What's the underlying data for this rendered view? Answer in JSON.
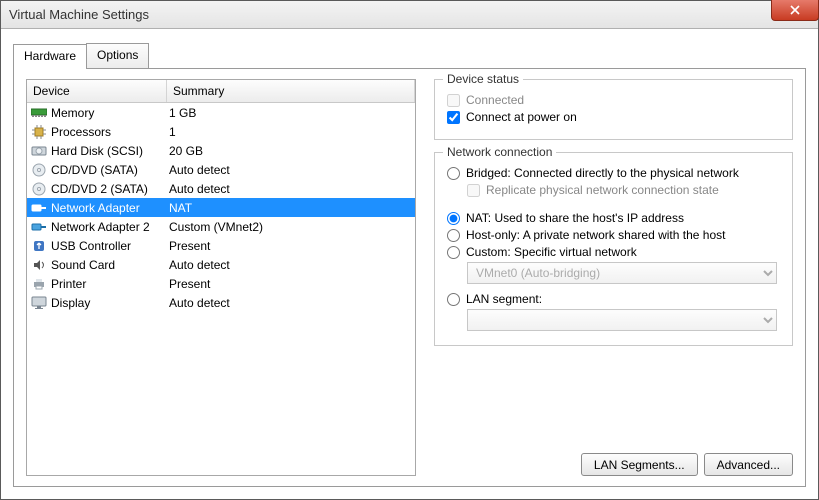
{
  "window": {
    "title": "Virtual Machine Settings"
  },
  "tabs": {
    "hardware": "Hardware",
    "options": "Options",
    "active": "hardware"
  },
  "list": {
    "col_device": "Device",
    "col_summary": "Summary",
    "selected_index": 5,
    "rows": [
      {
        "device": "Memory",
        "summary": "1 GB",
        "icon": "memory-icon"
      },
      {
        "device": "Processors",
        "summary": "1",
        "icon": "cpu-icon"
      },
      {
        "device": "Hard Disk (SCSI)",
        "summary": "20 GB",
        "icon": "disk-icon"
      },
      {
        "device": "CD/DVD (SATA)",
        "summary": "Auto detect",
        "icon": "cd-icon"
      },
      {
        "device": "CD/DVD 2 (SATA)",
        "summary": "Auto detect",
        "icon": "cd-icon"
      },
      {
        "device": "Network Adapter",
        "summary": "NAT",
        "icon": "net-icon"
      },
      {
        "device": "Network Adapter 2",
        "summary": "Custom (VMnet2)",
        "icon": "net-icon"
      },
      {
        "device": "USB Controller",
        "summary": "Present",
        "icon": "usb-icon"
      },
      {
        "device": "Sound Card",
        "summary": "Auto detect",
        "icon": "sound-icon"
      },
      {
        "device": "Printer",
        "summary": "Present",
        "icon": "printer-icon"
      },
      {
        "device": "Display",
        "summary": "Auto detect",
        "icon": "display-icon"
      }
    ]
  },
  "device_status": {
    "title": "Device status",
    "connected_label": "Connected",
    "connected_checked": false,
    "connected_enabled": false,
    "power_on_label": "Connect at power on",
    "power_on_checked": true
  },
  "network": {
    "title": "Network connection",
    "bridged_label": "Bridged: Connected directly to the physical network",
    "replicate_label": "Replicate physical network connection state",
    "nat_label": "NAT: Used to share the host's IP address",
    "hostonly_label": "Host-only: A private network shared with the host",
    "custom_label": "Custom: Specific virtual network",
    "custom_select": "VMnet0 (Auto-bridging)",
    "lan_label": "LAN segment:",
    "lan_select": "",
    "selected": "nat"
  },
  "buttons": {
    "lan_segments": "LAN Segments...",
    "advanced": "Advanced..."
  },
  "colors": {
    "selection": "#1e90ff",
    "border": "#9a9a9a",
    "close_top": "#e67a6a",
    "close_bottom": "#c83b22"
  }
}
